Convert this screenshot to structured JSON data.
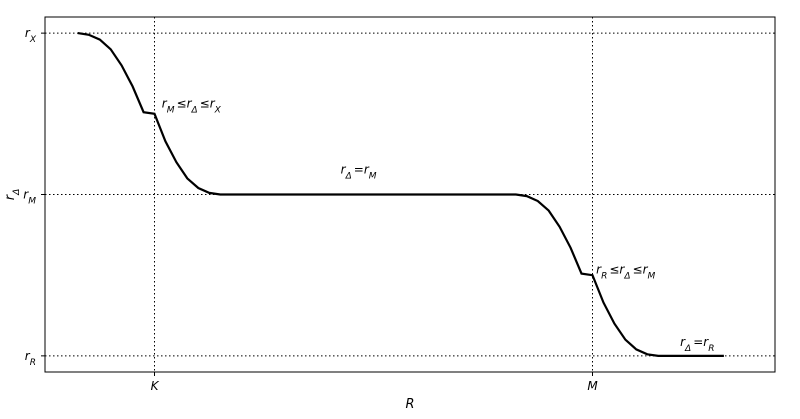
{
  "chart_data": {
    "type": "line",
    "title": "",
    "xlabel": "R",
    "ylabel": {
      "base": "r",
      "sub": "Δ"
    },
    "xlim": [
      0,
      1
    ],
    "ylim": [
      -0.1,
      2.1
    ],
    "grid": false,
    "x_ticks": [
      {
        "value": 0.15,
        "label": "K"
      },
      {
        "value": 0.75,
        "label": "M"
      }
    ],
    "y_ticks": [
      {
        "value": 0,
        "base": "r",
        "sub": "R"
      },
      {
        "value": 1,
        "base": "r",
        "sub": "M"
      },
      {
        "value": 2,
        "base": "r",
        "sub": "X"
      }
    ],
    "reference_lines": [
      {
        "axis": "x",
        "value": 0.15,
        "style": "dotted"
      },
      {
        "axis": "x",
        "value": 0.75,
        "style": "dotted"
      },
      {
        "axis": "y",
        "value": 0,
        "style": "dotted"
      },
      {
        "axis": "y",
        "value": 1,
        "style": "dotted"
      },
      {
        "axis": "y",
        "value": 2,
        "style": "dotted"
      }
    ],
    "series": [
      {
        "color": "#000000",
        "x": [
          0.045,
          0.06,
          0.075,
          0.09,
          0.105,
          0.12,
          0.135,
          0.15,
          0.165,
          0.18,
          0.195,
          0.21,
          0.225,
          0.24,
          0.255,
          0.27,
          0.3,
          0.35,
          0.4,
          0.45,
          0.5,
          0.55,
          0.6,
          0.645,
          0.66,
          0.675,
          0.69,
          0.705,
          0.72,
          0.735,
          0.75,
          0.765,
          0.78,
          0.795,
          0.81,
          0.825,
          0.84,
          0.855,
          0.87,
          0.9,
          0.93
        ],
        "y": [
          2.0,
          1.99,
          1.96,
          1.9,
          1.8,
          1.67,
          1.51,
          1.5,
          1.33,
          1.2,
          1.1,
          1.04,
          1.01,
          1.0,
          1.0,
          1.0,
          1.0,
          1.0,
          1.0,
          1.0,
          1.0,
          1.0,
          1.0,
          1.0,
          0.99,
          0.96,
          0.9,
          0.8,
          0.67,
          0.51,
          0.5,
          0.33,
          0.2,
          0.1,
          0.04,
          0.01,
          0.0,
          0.0,
          0.0,
          0.0,
          0.0
        ]
      }
    ],
    "annotations": [
      {
        "x": 0.16,
        "y": 1.54,
        "parts": [
          [
            "r",
            "M"
          ],
          [
            "≤",
            ""
          ],
          [
            "r",
            "Δ"
          ],
          [
            "≤",
            ""
          ],
          [
            "r",
            "X"
          ]
        ]
      },
      {
        "x": 0.405,
        "y": 1.13,
        "parts": [
          [
            "r",
            "Δ"
          ],
          [
            "=",
            ""
          ],
          [
            "r",
            "M"
          ]
        ]
      },
      {
        "x": 0.755,
        "y": 0.51,
        "parts": [
          [
            "r",
            "R"
          ],
          [
            "≤",
            ""
          ],
          [
            "r",
            "Δ"
          ],
          [
            "≤",
            ""
          ],
          [
            "r",
            "M"
          ]
        ]
      },
      {
        "x": 0.87,
        "y": 0.06,
        "parts": [
          [
            "r",
            "Δ"
          ],
          [
            "=",
            ""
          ],
          [
            "r",
            "R"
          ]
        ]
      }
    ]
  }
}
